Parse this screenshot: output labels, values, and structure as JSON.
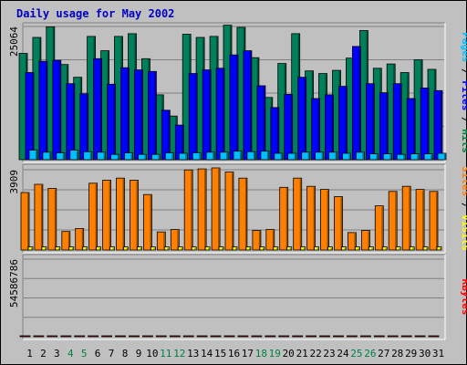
{
  "chart_data": [
    {
      "type": "bar",
      "panel": "pages-files-hits",
      "title": "Daily usage for May 2002",
      "ytick_label": "25064",
      "ylim": [
        0,
        25064
      ],
      "ylabel_parts": [
        {
          "text": "Pages",
          "color": "#00c0ff"
        },
        {
          "text": " / ",
          "color": "#000000"
        },
        {
          "text": "Files",
          "color": "#0000ff"
        },
        {
          "text": " / ",
          "color": "#000000"
        },
        {
          "text": "Hits",
          "color": "#008040"
        }
      ],
      "categories": [
        "1",
        "2",
        "3",
        "4",
        "5",
        "6",
        "7",
        "8",
        "9",
        "10",
        "11",
        "12",
        "13",
        "14",
        "15",
        "16",
        "17",
        "18",
        "19",
        "20",
        "21",
        "22",
        "23",
        "24",
        "25",
        "26",
        "27",
        "28",
        "29",
        "30",
        "31"
      ],
      "series": [
        {
          "name": "Hits",
          "color": "#00805a",
          "values": [
            20000,
            23000,
            25000,
            17900,
            15500,
            23200,
            20500,
            23200,
            23700,
            19000,
            12200,
            8200,
            23600,
            23000,
            23200,
            25300,
            24900,
            19200,
            11700,
            18100,
            23700,
            16700,
            16200,
            16800,
            19100,
            24300,
            17200,
            18000,
            16400,
            18800,
            17000
          ]
        },
        {
          "name": "Files",
          "color": "#0000ff",
          "values": [
            16400,
            18500,
            18700,
            14300,
            12400,
            19000,
            14200,
            17300,
            16900,
            16600,
            9300,
            6500,
            16200,
            16900,
            17200,
            19700,
            20500,
            13900,
            9800,
            12300,
            15500,
            11500,
            12200,
            13800,
            21300,
            14300,
            12600,
            14300,
            11500,
            13500,
            13000
          ]
        },
        {
          "name": "Pages",
          "color": "#00c0ff",
          "values": [
            1800,
            1400,
            1300,
            1800,
            1500,
            1400,
            1000,
            1300,
            1000,
            1000,
            1300,
            1200,
            1300,
            1400,
            1400,
            1600,
            1500,
            1600,
            1200,
            1200,
            1400,
            1400,
            1400,
            1200,
            1400,
            1100,
            1100,
            1000,
            1100,
            1100,
            1200
          ]
        }
      ]
    },
    {
      "type": "bar",
      "panel": "sites-visits",
      "ytick_label": "3909",
      "ylim": [
        0,
        3909
      ],
      "ylabel_parts": [
        {
          "text": "Sites",
          "color": "#ff8000"
        },
        {
          "text": " / ",
          "color": "#000000"
        },
        {
          "text": "Visits",
          "color": "#ffff00"
        }
      ],
      "categories": [
        "1",
        "2",
        "3",
        "4",
        "5",
        "6",
        "7",
        "8",
        "9",
        "10",
        "11",
        "12",
        "13",
        "14",
        "15",
        "16",
        "17",
        "18",
        "19",
        "20",
        "21",
        "22",
        "23",
        "24",
        "25",
        "26",
        "27",
        "28",
        "29",
        "30",
        "31"
      ],
      "series": [
        {
          "name": "Sites",
          "color": "#ff8000",
          "values": [
            2800,
            3200,
            3000,
            900,
            1050,
            3250,
            3400,
            3500,
            3400,
            2700,
            880,
            1000,
            3900,
            3950,
            4000,
            3800,
            3500,
            950,
            1000,
            3050,
            3500,
            3100,
            2950,
            2600,
            850,
            950,
            2150,
            2850,
            3100,
            2950,
            2850
          ]
        },
        {
          "name": "Visits",
          "color": "#ffff00",
          "values": [
            150,
            150,
            150,
            150,
            150,
            150,
            150,
            150,
            150,
            150,
            150,
            150,
            150,
            150,
            150,
            150,
            150,
            150,
            150,
            150,
            150,
            150,
            150,
            150,
            150,
            150,
            150,
            150,
            150,
            150,
            150
          ]
        }
      ]
    },
    {
      "type": "bar",
      "panel": "kbytes",
      "ytick_label": "54586786",
      "ylim": [
        0,
        54586786
      ],
      "ylabel_parts": [
        {
          "text": "KBytes",
          "color": "#ff0000"
        }
      ],
      "categories": [
        "1",
        "2",
        "3",
        "4",
        "5",
        "6",
        "7",
        "8",
        "9",
        "10",
        "11",
        "12",
        "13",
        "14",
        "15",
        "16",
        "17",
        "18",
        "19",
        "20",
        "21",
        "22",
        "23",
        "24",
        "25",
        "26",
        "27",
        "28",
        "29",
        "30",
        "31"
      ],
      "series": [
        {
          "name": "KBytes",
          "color": "#ff0000",
          "values": [
            42000,
            49000,
            52000,
            34000,
            33000,
            50000,
            49000,
            52000,
            48000,
            46000,
            24000,
            18000,
            48000,
            49000,
            50000,
            53000,
            51500,
            33000,
            24500,
            48000,
            50000,
            46000,
            48000,
            51500,
            53000,
            52000,
            52500,
            51500,
            52000,
            51500,
            51500
          ]
        }
      ]
    }
  ],
  "xaxis_day_colors": [
    "#000000",
    "#000000",
    "#000000",
    "#008040",
    "#008040",
    "#000000",
    "#000000",
    "#000000",
    "#000000",
    "#000000",
    "#008040",
    "#008040",
    "#000000",
    "#000000",
    "#000000",
    "#000000",
    "#000000",
    "#008040",
    "#008040",
    "#000000",
    "#000000",
    "#000000",
    "#000000",
    "#000000",
    "#008040",
    "#008040",
    "#000000",
    "#000000",
    "#000000",
    "#000000",
    "#000000"
  ]
}
